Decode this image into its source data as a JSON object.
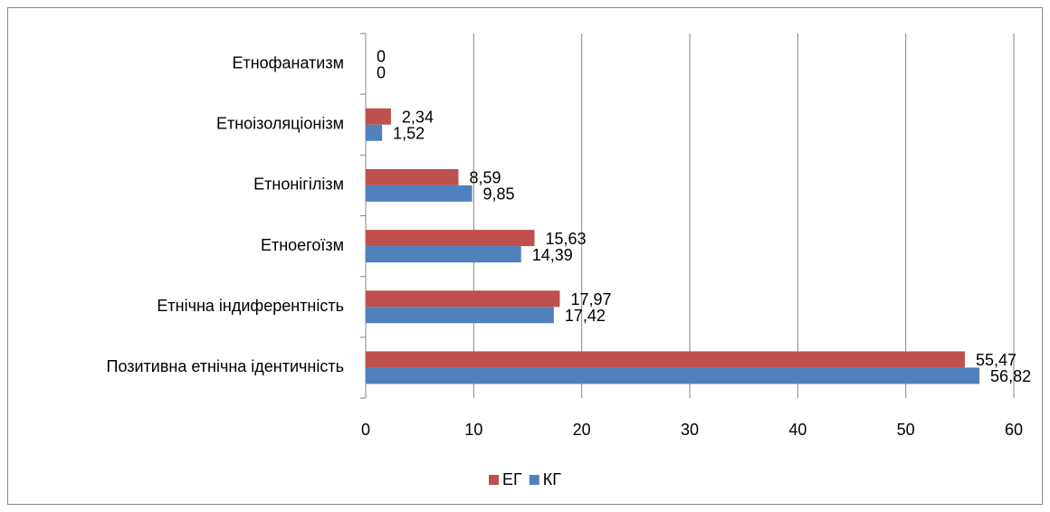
{
  "chart_data": {
    "type": "barh",
    "categories": [
      "Позитивна етнічна ідентичність",
      "Етнічна індиферентність",
      "Етноегоїзм",
      "Етнонігілізм",
      "Етноізоляціонізм",
      "Етнофанатизм"
    ],
    "series": [
      {
        "name": "ЕГ",
        "color": "#c0504d",
        "values": [
          55.47,
          17.97,
          15.63,
          8.59,
          2.34,
          0
        ],
        "value_labels": [
          "55,47",
          "17,97",
          "15,63",
          "8,59",
          "2,34",
          "0"
        ]
      },
      {
        "name": "КГ",
        "color": "#4f81bd",
        "values": [
          56.82,
          17.42,
          14.39,
          9.85,
          1.52,
          0
        ],
        "value_labels": [
          "56,82",
          "17,42",
          "14,39",
          "9,85",
          "1,52",
          "0"
        ]
      }
    ],
    "xlim": [
      0,
      60
    ],
    "xticks": [
      0,
      10,
      20,
      30,
      40,
      50,
      60
    ],
    "grid": true,
    "legend": "bottom"
  }
}
